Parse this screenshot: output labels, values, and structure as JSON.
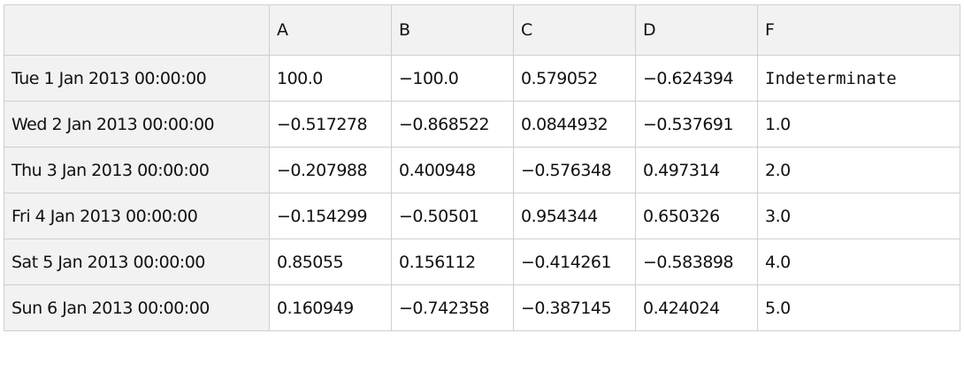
{
  "table": {
    "columns": [
      "A",
      "B",
      "C",
      "D",
      "F"
    ],
    "rows": [
      {
        "label": "Tue 1 Jan 2013 00:00:00",
        "values": [
          "100.0",
          "−100.0",
          "0.579052",
          "−0.624394",
          "Indeterminate"
        ]
      },
      {
        "label": "Wed 2 Jan 2013 00:00:00",
        "values": [
          "−0.517278",
          "−0.868522",
          "0.0844932",
          "−0.537691",
          "1.0"
        ]
      },
      {
        "label": "Thu 3 Jan 2013 00:00:00",
        "values": [
          "−0.207988",
          "0.400948",
          "−0.576348",
          "0.497314",
          "2.0"
        ]
      },
      {
        "label": "Fri 4 Jan 2013 00:00:00",
        "values": [
          "−0.154299",
          "−0.50501",
          "0.954344",
          "0.650326",
          "3.0"
        ]
      },
      {
        "label": "Sat 5 Jan 2013 00:00:00",
        "values": [
          "0.85055",
          "0.156112",
          "−0.414261",
          "−0.583898",
          "4.0"
        ]
      },
      {
        "label": "Sun 6 Jan 2013 00:00:00",
        "values": [
          "0.160949",
          "−0.742358",
          "−0.387145",
          "0.424024",
          "5.0"
        ]
      }
    ]
  }
}
